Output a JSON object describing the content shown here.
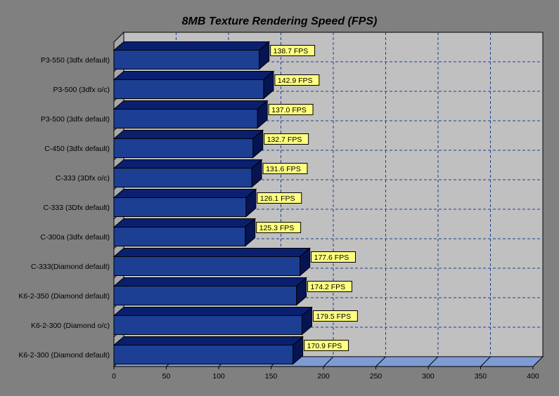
{
  "chart_data": {
    "type": "bar",
    "orientation": "horizontal",
    "title": "8MB Texture Rendering Speed (FPS)",
    "xlabel": "",
    "ylabel": "",
    "xlim": [
      0,
      400
    ],
    "x_ticks": [
      "0",
      "50",
      "100",
      "150",
      "200",
      "250",
      "300",
      "350",
      "400"
    ],
    "grid": true,
    "legend": "none",
    "categories": [
      "P3-550 (3dfx default)",
      "P3-500 (3dfx o/c)",
      "P3-500 (3dfx default)",
      "C-450 (3dfx default)",
      "C-333 (3Dfx o/c)",
      "C-333 (3Dfx default)",
      "C-300a (3dfx default)",
      "C-333(Diamond default)",
      "K6-2-350 (Diamond default)",
      "K6-2-300 (Diamond o/c)",
      "K6-2-300 (Diamond default)"
    ],
    "values": [
      138.7,
      142.9,
      137.0,
      132.7,
      131.6,
      126.1,
      125.3,
      177.6,
      174.2,
      179.5,
      170.9
    ],
    "data_labels": [
      "138.7 FPS",
      "142.9 FPS",
      "137.0 FPS",
      "132.7 FPS",
      "131.6 FPS",
      "126.1 FPS",
      "125.3 FPS",
      "177.6 FPS",
      "174.2 FPS",
      "179.5 FPS",
      "170.9 FPS"
    ],
    "colors": {
      "background": "#808080",
      "plot_wall": "#c0c0c0",
      "floor": "#7f9bd4",
      "bar_front": "#1c3f94",
      "bar_top": "#0a1f6e",
      "bar_side": "#061552",
      "label_box": "#ffff80",
      "grid": "#1c3f94"
    }
  }
}
